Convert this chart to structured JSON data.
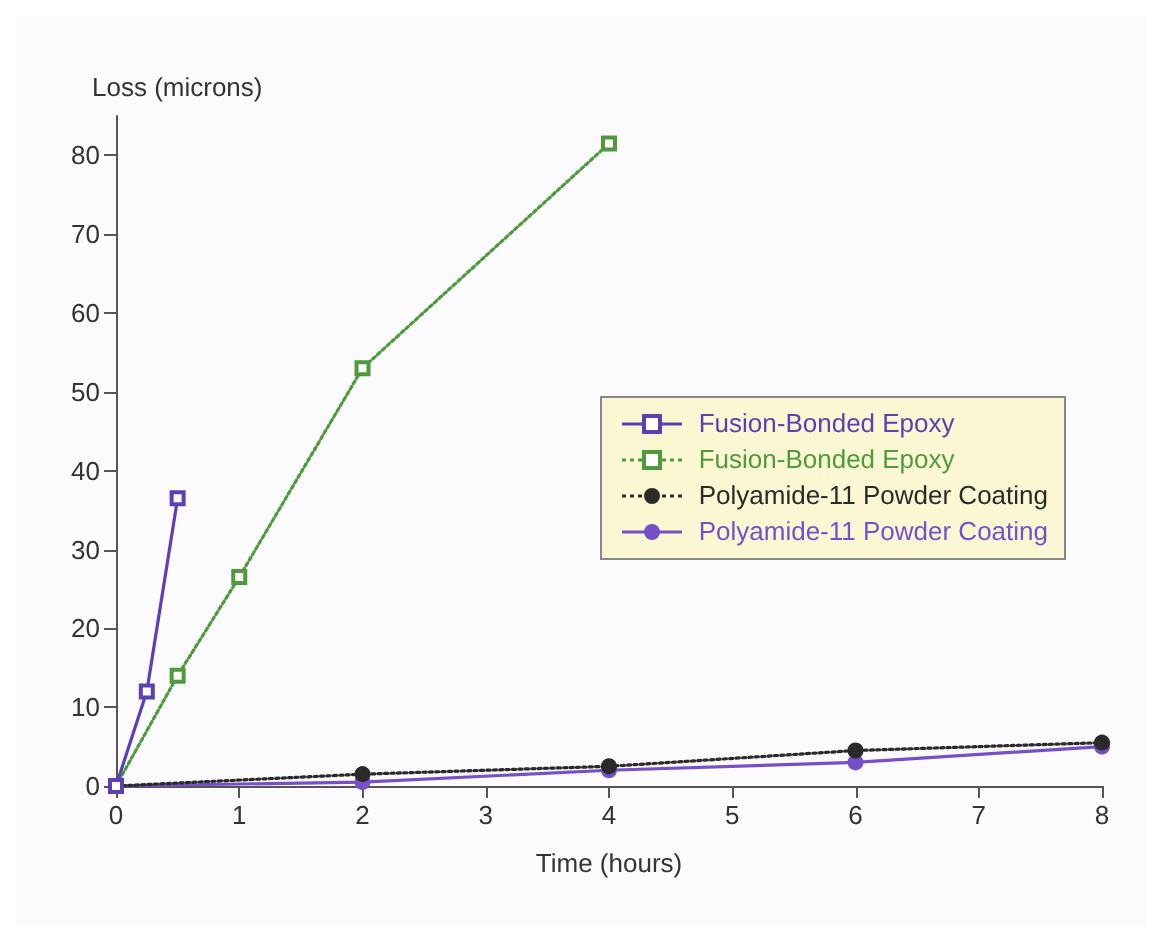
{
  "chart_data": {
    "type": "line",
    "xlabel": "Time (hours)",
    "ylabel": "Loss (microns)",
    "xlim": [
      0,
      8
    ],
    "xticks": [
      0,
      1,
      2,
      3,
      4,
      5,
      6,
      7,
      8
    ],
    "ylim": [
      0,
      85
    ],
    "yticks": [
      0,
      10,
      20,
      30,
      40,
      50,
      60,
      70,
      80
    ],
    "grid": false,
    "legend": "right",
    "series": [
      {
        "name": "Fusion-Bonded Epoxy",
        "color": "#5b3fb5",
        "x": [
          0,
          0.25,
          0.5
        ],
        "values": [
          0,
          12,
          36.5
        ],
        "marker": "square",
        "line_style": "solid"
      },
      {
        "name": "Fusion-Bonded Epoxy",
        "color": "#4e9a3c",
        "x": [
          0,
          0.5,
          1,
          2,
          4
        ],
        "values": [
          0,
          14,
          26.5,
          53,
          81.5
        ],
        "marker": "square",
        "line_style": "dotted"
      },
      {
        "name": "Polyamide-11 Powder Coating",
        "color": "#2a2a2a",
        "x": [
          0,
          2,
          4,
          6,
          8
        ],
        "values": [
          0,
          1.5,
          2.5,
          4.5,
          5.5
        ],
        "marker": "circle",
        "line_style": "dotted"
      },
      {
        "name": "Polyamide-11 Powder Coating",
        "color": "#7650c8",
        "x": [
          0,
          2,
          4,
          6,
          8
        ],
        "values": [
          0,
          0.5,
          2,
          3,
          5
        ],
        "marker": "circle",
        "line_style": "solid"
      }
    ]
  }
}
